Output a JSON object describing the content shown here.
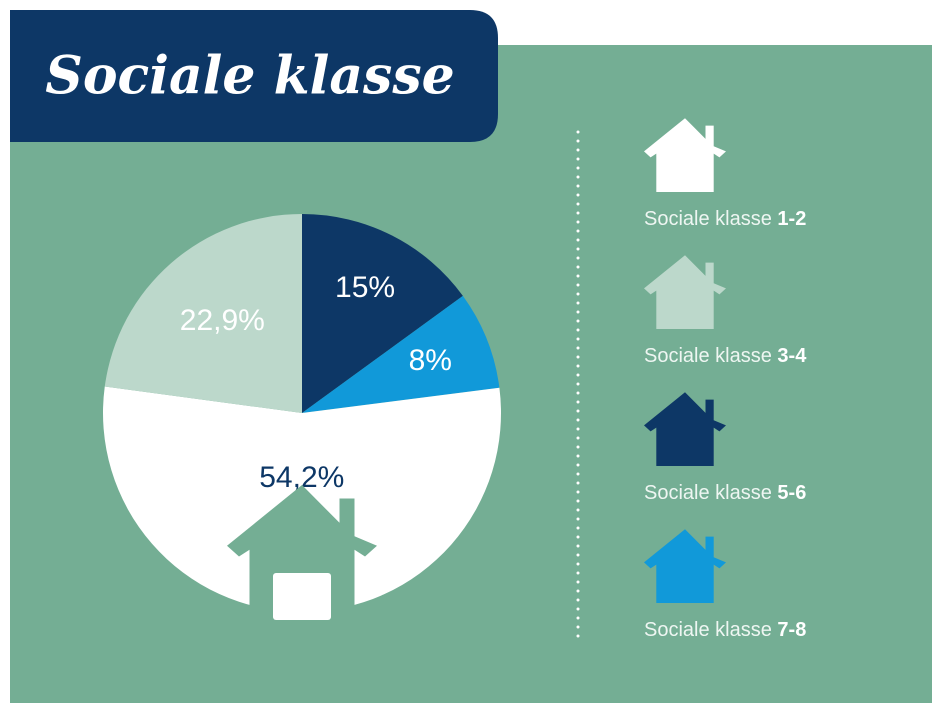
{
  "chart_data": {
    "type": "pie",
    "title": "Sociale klasse",
    "legend_label": "Sociale klasse",
    "categories": [
      "5-6",
      "7-8",
      "1-2",
      "3-4"
    ],
    "values": [
      15,
      8,
      54.2,
      22.9
    ],
    "value_labels": [
      "15%",
      "8%",
      "54,2%",
      "22,9%"
    ],
    "colors": [
      "#0d3766",
      "#1199d9",
      "#ffffff",
      "#bcd8cb"
    ]
  }
}
